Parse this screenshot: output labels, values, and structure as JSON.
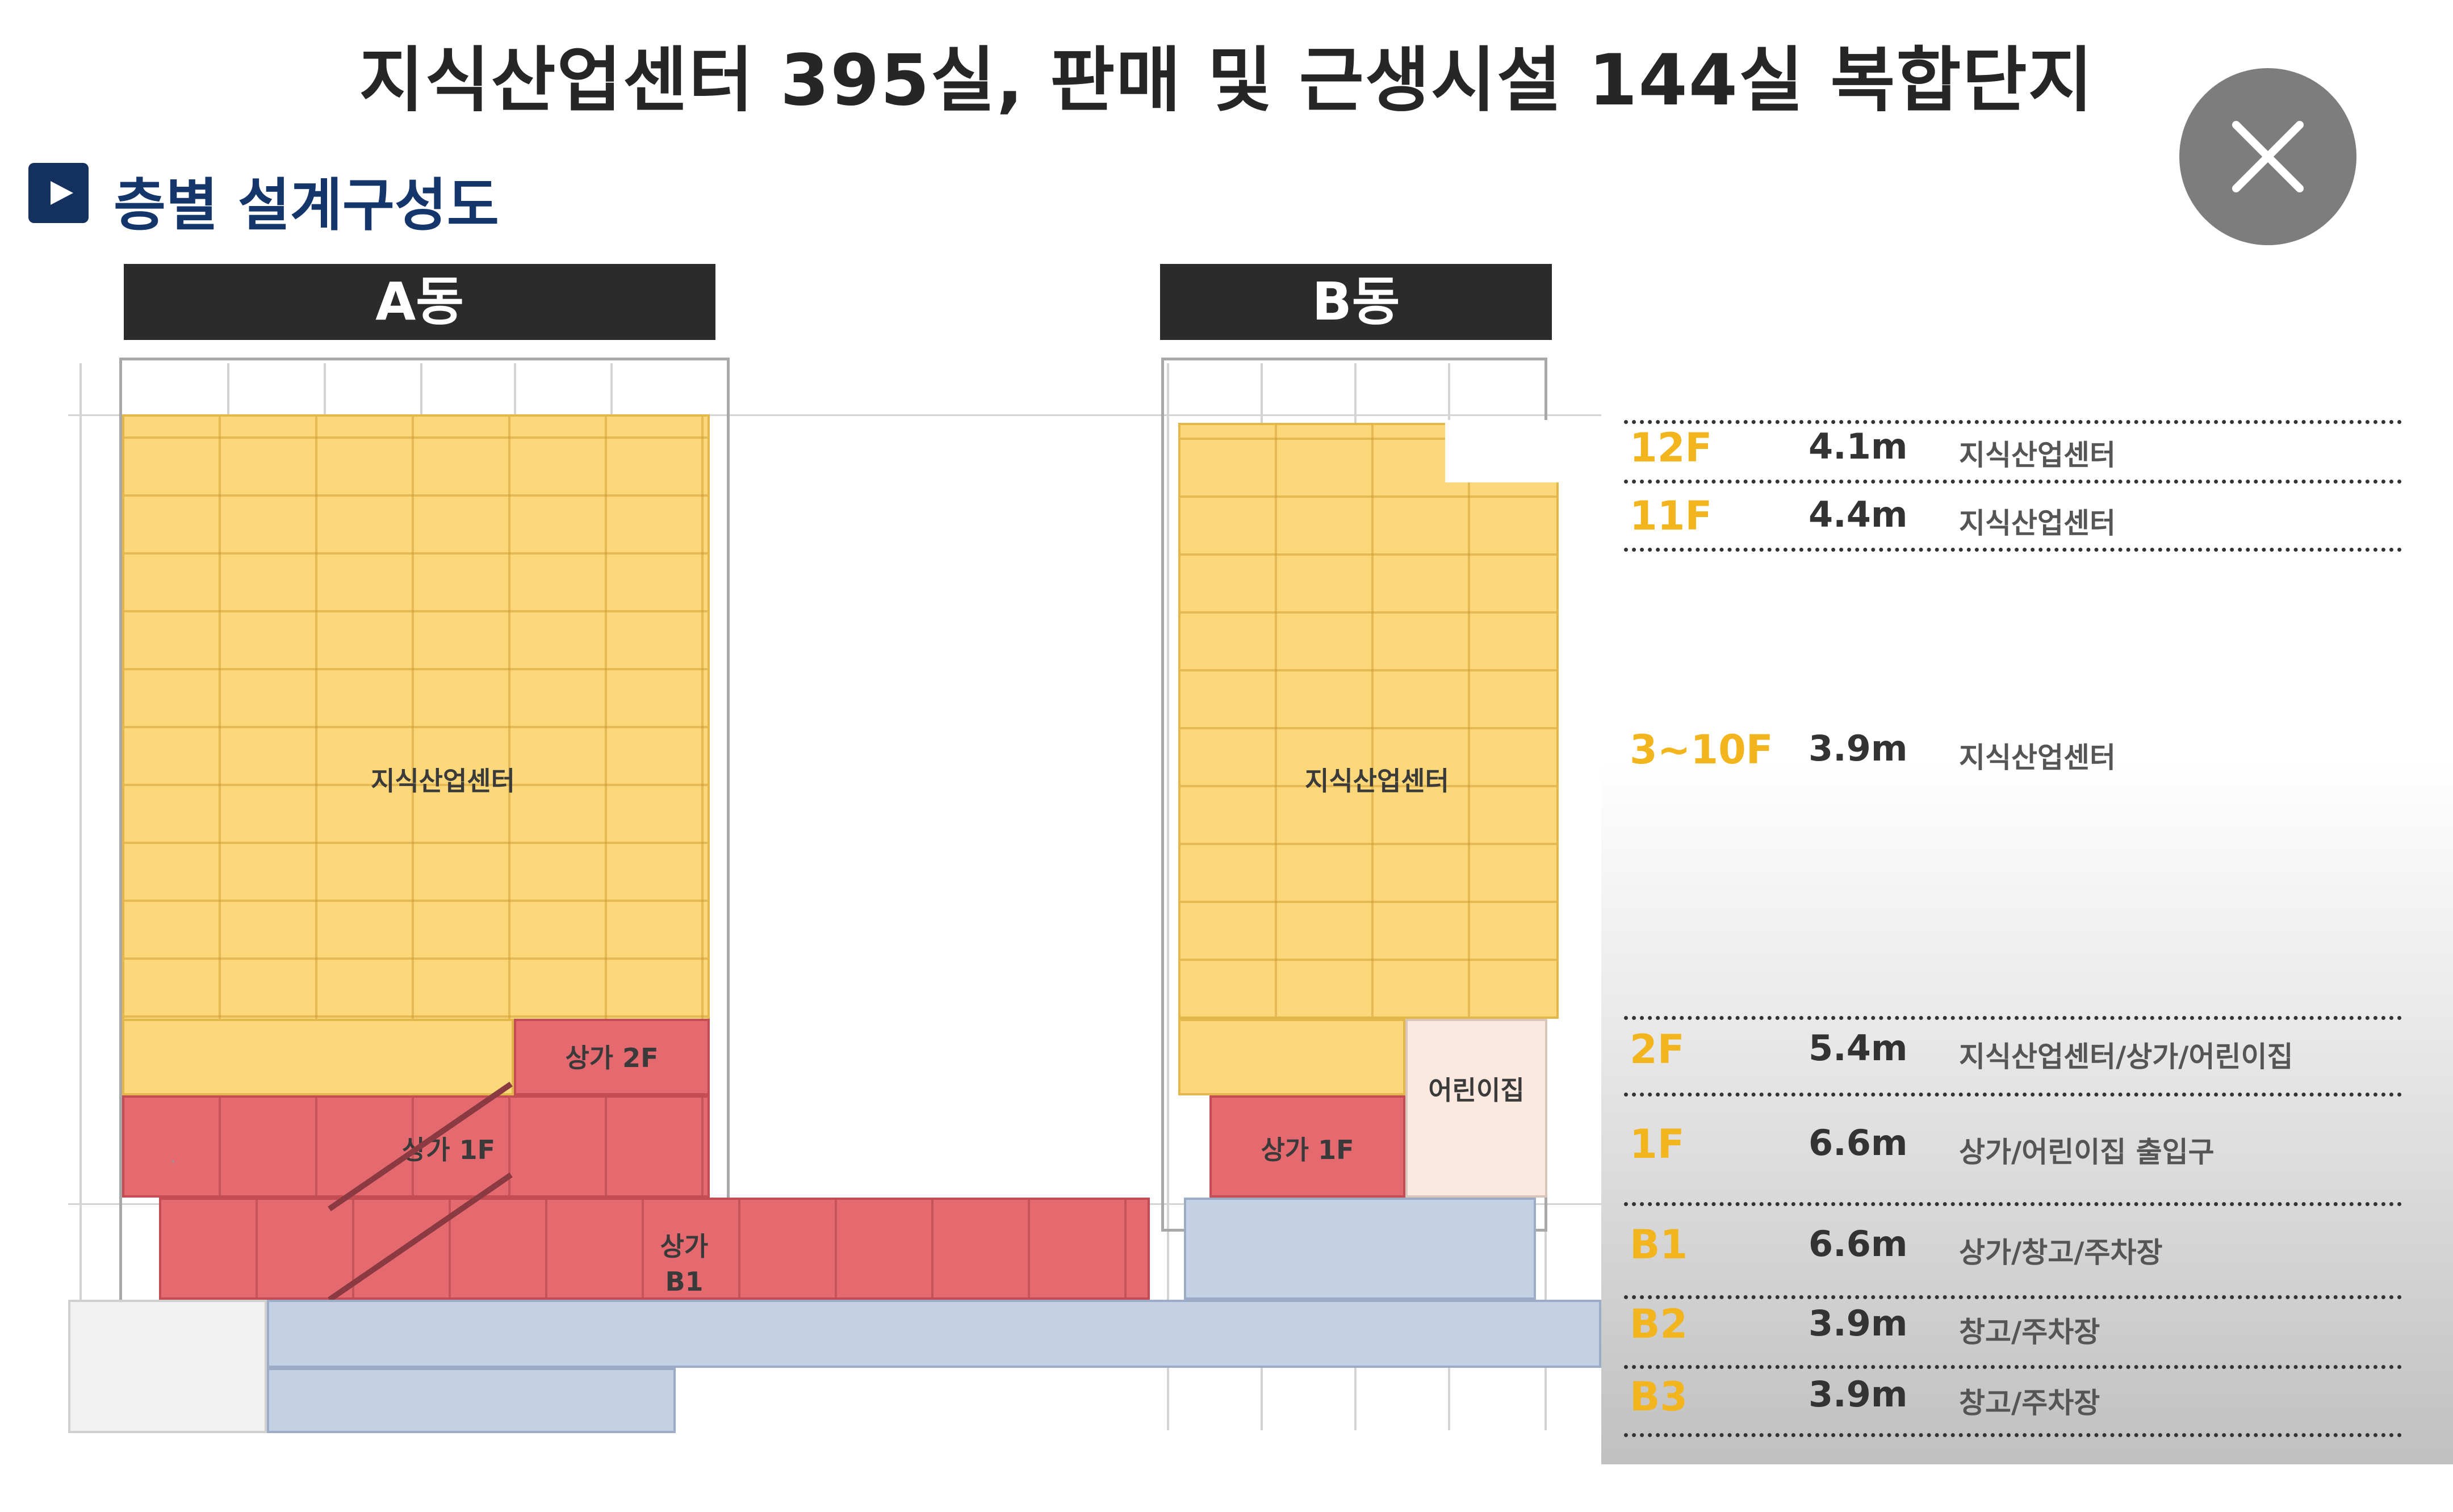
{
  "title": "지식산업센터 395실,  판매 및 근생시설 144실 복합단지",
  "subtitle": "층별 설계구성도",
  "buildings": {
    "a": "A동",
    "b": "B동"
  },
  "zones": {
    "a_office": "지식산업센터",
    "b_office": "지식산업센터",
    "a_shop_2f": "상가 2F",
    "a_shop_1f": "상가 1F",
    "a_shop_b1": "상가\nB1",
    "b_shop_1f": "상가 1F",
    "b_daycare": "어린이집"
  },
  "legend": [
    {
      "floor": "12F",
      "height": "4.1m",
      "use": "지식산업센터"
    },
    {
      "floor": "11F",
      "height": "4.4m",
      "use": "지식산업센터"
    },
    {
      "floor": "3~10F",
      "height": "3.9m",
      "use": "지식산업센터"
    },
    {
      "floor": "2F",
      "height": "5.4m",
      "use": "지식산업센터/상가/어린이집"
    },
    {
      "floor": "1F",
      "height": "6.6m",
      "use": "상가/어린이집 출입구"
    },
    {
      "floor": "B1",
      "height": "6.6m",
      "use": "상가/창고/주차장"
    },
    {
      "floor": "B2",
      "height": "3.9m",
      "use": "창고/주차장"
    },
    {
      "floor": "B3",
      "height": "3.9m",
      "use": "창고/주차장"
    }
  ],
  "colors": {
    "knowledge_center": "#fdd87a",
    "retail": "#e46a70",
    "parking": "#c4d0e3",
    "daycare": "#fbe9df",
    "floor_label": "#f2b51d"
  },
  "icons": {
    "close": "close-icon",
    "bullet": "play-icon"
  }
}
